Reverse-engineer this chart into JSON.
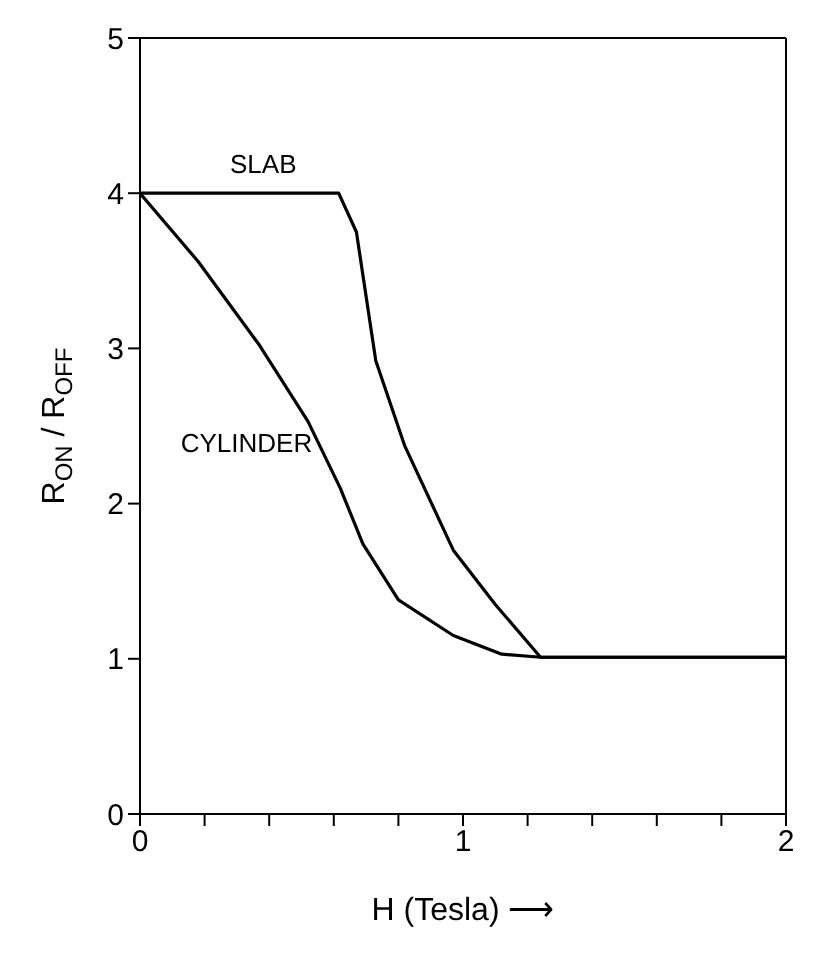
{
  "chart_data": {
    "type": "line",
    "xlabel": "H (Tesla) ⟶",
    "ylabel": "R$_{ON}$ / R$_{OFF}$",
    "xlim": [
      0,
      2
    ],
    "xticks": [
      0,
      {
        "value": 0.2,
        "label": null
      },
      {
        "value": 0.4,
        "label": null
      },
      {
        "value": 0.6,
        "label": null
      },
      {
        "value": 0.8,
        "label": null
      },
      1,
      {
        "value": 1.2,
        "label": null
      },
      {
        "value": 1.4,
        "label": null
      },
      {
        "value": 1.6,
        "label": null
      },
      {
        "value": 1.8,
        "label": null
      },
      2
    ],
    "ylim": [
      0,
      5
    ],
    "yticks": [
      0,
      1,
      2,
      3,
      4,
      5
    ],
    "grid": false,
    "legend": false,
    "marker": "none",
    "line_style": "solid",
    "series": [
      {
        "name": "SLAB",
        "color": "#000000",
        "x": [
          0,
          0.615,
          0.67,
          0.73,
          0.82,
          0.97,
          1.1,
          1.24,
          2
        ],
        "values": [
          4,
          4,
          3.75,
          2.92,
          2.37,
          1.7,
          1.35,
          1.01,
          1.01
        ]
      },
      {
        "name": "CYLINDER",
        "color": "#000000",
        "x": [
          0,
          0.18,
          0.37,
          0.52,
          0.62,
          0.69,
          0.8,
          0.97,
          1.12,
          1.24,
          2
        ],
        "values": [
          4,
          3.56,
          3.02,
          2.53,
          2.1,
          1.74,
          1.38,
          1.15,
          1.03,
          1.01,
          1.01
        ]
      }
    ]
  }
}
